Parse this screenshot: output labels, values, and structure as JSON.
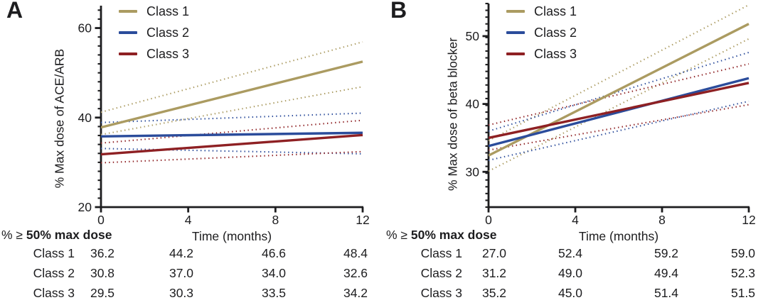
{
  "figure": {
    "background": "#ffffff",
    "text_color": "#1d1d1f",
    "axis_color": "#1d1d1f"
  },
  "chart_data": [
    {
      "type": "line",
      "panel": "A",
      "title": "",
      "ylabel": "% Max dose of ACE/ARB",
      "xlabel": "Time (months)",
      "x": [
        0,
        12
      ],
      "xticks": [
        0,
        4,
        8,
        12
      ],
      "yticks": [
        20,
        40,
        60
      ],
      "ylim": [
        20,
        65
      ],
      "grid": false,
      "legend_position": "top-left-inside",
      "legend": [
        "Class 1",
        "Class 2",
        "Class 3"
      ],
      "series": [
        {
          "name": "Class 1",
          "color": "#ab9b61",
          "line": "solid",
          "ci_style": "dotted",
          "solid": [
            37.8,
            52.5
          ],
          "ci_upper": [
            41.2,
            56.9
          ],
          "ci_lower": [
            36.2,
            46.9
          ]
        },
        {
          "name": "Class 2",
          "color": "#2b4c9b",
          "line": "solid",
          "ci_style": "dotted",
          "solid": [
            35.8,
            36.6
          ],
          "ci_upper": [
            38.9,
            41.0
          ],
          "ci_lower": [
            33.1,
            31.9
          ]
        },
        {
          "name": "Class 3",
          "color": "#8e2023",
          "line": "solid",
          "ci_style": "dotted",
          "solid": [
            31.8,
            36.1
          ],
          "ci_upper": [
            34.3,
            39.4
          ],
          "ci_lower": [
            29.9,
            32.4
          ]
        }
      ],
      "table": {
        "header_prefix": "% ≥",
        "header_bold": "50% max dose",
        "columns": [
          0,
          4,
          8,
          12
        ],
        "rows": [
          {
            "label": "Class 1",
            "values": [
              "36.2",
              "44.2",
              "46.6",
              "48.4"
            ]
          },
          {
            "label": "Class 2",
            "values": [
              "30.8",
              "37.0",
              "34.0",
              "32.6"
            ]
          },
          {
            "label": "Class 3",
            "values": [
              "29.5",
              "30.3",
              "33.5",
              "34.2"
            ]
          }
        ]
      }
    },
    {
      "type": "line",
      "panel": "B",
      "title": "",
      "ylabel": "% Max dose of beta blocker",
      "xlabel": "Time (months)",
      "x": [
        0,
        12
      ],
      "xticks": [
        0,
        4,
        8,
        12
      ],
      "yticks": [
        30,
        40,
        50
      ],
      "ylim": [
        24.8,
        54.8
      ],
      "grid": false,
      "legend_position": "top-left-inside",
      "legend": [
        "Class 1",
        "Class 2",
        "Class 3"
      ],
      "series": [
        {
          "name": "Class 1",
          "color": "#ab9b61",
          "line": "solid",
          "ci_style": "dotted",
          "solid": [
            32.4,
            51.8
          ],
          "ci_upper": [
            34.6,
            54.6
          ],
          "ci_lower": [
            30.1,
            49.6
          ]
        },
        {
          "name": "Class 2",
          "color": "#2b4c9b",
          "line": "solid",
          "ci_style": "dotted",
          "solid": [
            33.8,
            43.8
          ],
          "ci_upper": [
            36.0,
            47.6
          ],
          "ci_lower": [
            31.7,
            40.4
          ]
        },
        {
          "name": "Class 3",
          "color": "#8e2023",
          "line": "solid",
          "ci_style": "dotted",
          "solid": [
            35.0,
            43.1
          ],
          "ci_upper": [
            36.9,
            45.9
          ],
          "ci_lower": [
            33.2,
            39.9
          ]
        }
      ],
      "table": {
        "header_prefix": "% ≥",
        "header_bold": "50% max dose",
        "columns": [
          0,
          4,
          8,
          12
        ],
        "rows": [
          {
            "label": "Class 1",
            "values": [
              "27.0",
              "52.4",
              "59.2",
              "59.0"
            ]
          },
          {
            "label": "Class 2",
            "values": [
              "31.2",
              "49.0",
              "49.4",
              "52.3"
            ]
          },
          {
            "label": "Class 3",
            "values": [
              "35.2",
              "45.0",
              "51.4",
              "51.5"
            ]
          }
        ]
      }
    }
  ]
}
